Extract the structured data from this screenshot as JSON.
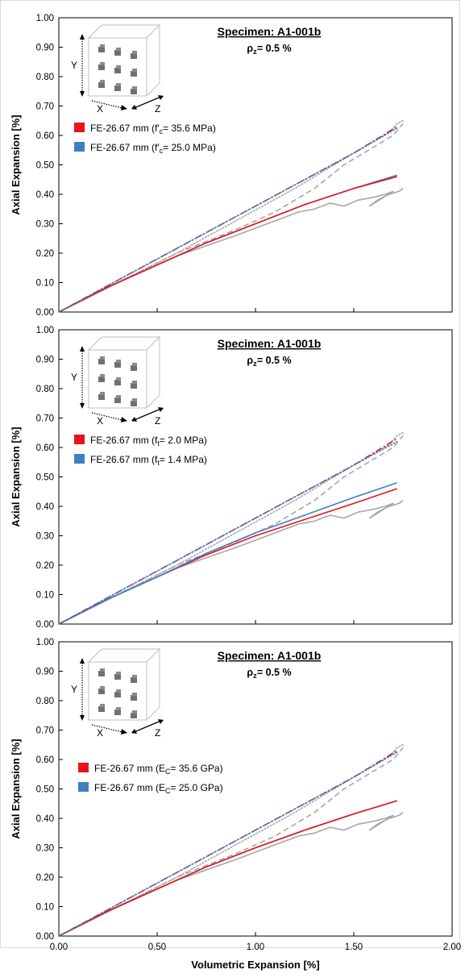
{
  "colors": {
    "red": "#e8131a",
    "blue": "#3d7fc1",
    "gray": "#a6a6a6",
    "axis": "#000000"
  },
  "shared_axes": {
    "xlabel": "Volumetric Expansion [%]",
    "ylabel": "Axial Expansion [%]",
    "x_ticks": [
      "0.00",
      "0.50",
      "1.00",
      "1.50",
      "2.00"
    ],
    "y_ticks": [
      "0.00",
      "0.10",
      "0.20",
      "0.30",
      "0.40",
      "0.50",
      "0.60",
      "0.70",
      "0.80",
      "0.90",
      "1.00"
    ]
  },
  "cube_icon": {
    "y_label": "Y",
    "x_label": "X",
    "z_label": "Z"
  },
  "chart_data": [
    {
      "type": "line",
      "title": "Specimen: A1-001b",
      "subtitle": "ρz= 0.5 %",
      "xlabel": "",
      "ylabel": "Axial Expansion [%]",
      "xlim": [
        0,
        2
      ],
      "ylim": [
        0,
        1
      ],
      "grid": false,
      "legend_position": "top-left",
      "series": [
        {
          "name": "FE-26.67 mm (f′c= 35.6 MPa)",
          "color": "#e8131a",
          "style": "dashdot",
          "x": [
            0,
            0.25,
            0.5,
            0.75,
            1.0,
            1.25,
            1.5,
            1.72
          ],
          "y": [
            0,
            0.09,
            0.18,
            0.27,
            0.36,
            0.45,
            0.54,
            0.63
          ]
        },
        {
          "name": "FE-26.67 mm (f′c= 25.0 MPa)",
          "color": "#3d7fc1",
          "style": "solid",
          "x": [
            0,
            0.25,
            0.5,
            0.75,
            1.0,
            1.25,
            1.5,
            1.72
          ],
          "y": [
            0,
            0.085,
            0.16,
            0.235,
            0.3,
            0.365,
            0.42,
            0.465
          ]
        },
        {
          "name": "",
          "color": "#e8131a",
          "style": "solid",
          "x": [
            0,
            0.25,
            0.5,
            0.75,
            1.0,
            1.25,
            1.5,
            1.72
          ],
          "y": [
            0,
            0.085,
            0.16,
            0.235,
            0.3,
            0.365,
            0.42,
            0.46
          ]
        },
        {
          "name": "",
          "color": "#3d7fc1",
          "style": "dotted",
          "x": [
            0,
            0.25,
            0.5,
            0.75,
            1.0,
            1.25,
            1.5,
            1.72
          ],
          "y": [
            0,
            0.09,
            0.18,
            0.27,
            0.36,
            0.45,
            0.54,
            0.625
          ]
        },
        {
          "name": "",
          "color": "#a6a6a6",
          "style": "dotted",
          "x": [
            0,
            0.3,
            0.6,
            0.9,
            1.2,
            1.45,
            1.6,
            1.68,
            1.72,
            1.75
          ],
          "y": [
            0,
            0.1,
            0.2,
            0.31,
            0.42,
            0.52,
            0.58,
            0.61,
            0.64,
            0.65
          ]
        },
        {
          "name": "",
          "color": "#a6a6a6",
          "style": "dashed",
          "x": [
            0,
            0.3,
            0.6,
            0.9,
            1.1,
            1.3,
            1.45,
            1.6,
            1.7,
            1.75
          ],
          "y": [
            0,
            0.1,
            0.2,
            0.28,
            0.34,
            0.42,
            0.5,
            0.56,
            0.6,
            0.64
          ]
        },
        {
          "name": "",
          "color": "#a6a6a6",
          "style": "solid",
          "x": [
            0,
            0.3,
            0.6,
            0.9,
            1.1,
            1.22,
            1.3,
            1.38,
            1.45,
            1.52,
            1.6,
            1.66,
            1.7,
            1.58,
            1.62,
            1.68,
            1.73,
            1.75
          ],
          "y": [
            0,
            0.1,
            0.19,
            0.26,
            0.31,
            0.34,
            0.35,
            0.37,
            0.36,
            0.38,
            0.39,
            0.4,
            0.41,
            0.36,
            0.38,
            0.4,
            0.41,
            0.42
          ]
        }
      ]
    },
    {
      "type": "line",
      "title": "Specimen: A1-001b",
      "subtitle": "ρz= 0.5 %",
      "xlabel": "",
      "ylabel": "Axial Expansion [%]",
      "xlim": [
        0,
        2
      ],
      "ylim": [
        0,
        1
      ],
      "grid": false,
      "legend_position": "top-left",
      "series": [
        {
          "name": "FE-26.67 mm (ft= 2.0 MPa)",
          "color": "#e8131a",
          "style": "solid",
          "x": [
            0,
            0.25,
            0.5,
            0.75,
            1.0,
            1.25,
            1.5,
            1.72
          ],
          "y": [
            0,
            0.085,
            0.16,
            0.235,
            0.3,
            0.355,
            0.41,
            0.46
          ]
        },
        {
          "name": "FE-26.67 mm (ft= 1.4 MPa)",
          "color": "#3d7fc1",
          "style": "solid",
          "x": [
            0,
            0.25,
            0.5,
            0.75,
            1.0,
            1.25,
            1.5,
            1.72
          ],
          "y": [
            0,
            0.085,
            0.16,
            0.24,
            0.31,
            0.37,
            0.43,
            0.48
          ]
        },
        {
          "name": "",
          "color": "#e8131a",
          "style": "dashdot",
          "x": [
            0,
            0.25,
            0.5,
            0.75,
            1.0,
            1.25,
            1.5,
            1.72
          ],
          "y": [
            0,
            0.09,
            0.18,
            0.27,
            0.36,
            0.45,
            0.54,
            0.63
          ]
        },
        {
          "name": "",
          "color": "#3d7fc1",
          "style": "dotted",
          "x": [
            0,
            0.25,
            0.5,
            0.75,
            1.0,
            1.25,
            1.5,
            1.72
          ],
          "y": [
            0,
            0.09,
            0.18,
            0.27,
            0.36,
            0.45,
            0.54,
            0.62
          ]
        },
        {
          "name": "",
          "color": "#a6a6a6",
          "style": "dotted",
          "x": [
            0,
            0.3,
            0.6,
            0.9,
            1.2,
            1.45,
            1.6,
            1.68,
            1.72,
            1.75
          ],
          "y": [
            0,
            0.1,
            0.2,
            0.31,
            0.42,
            0.52,
            0.58,
            0.61,
            0.64,
            0.65
          ]
        },
        {
          "name": "",
          "color": "#a6a6a6",
          "style": "dashed",
          "x": [
            0,
            0.3,
            0.6,
            0.9,
            1.1,
            1.3,
            1.45,
            1.6,
            1.7,
            1.75
          ],
          "y": [
            0,
            0.1,
            0.2,
            0.28,
            0.34,
            0.42,
            0.5,
            0.56,
            0.6,
            0.64
          ]
        },
        {
          "name": "",
          "color": "#a6a6a6",
          "style": "solid",
          "x": [
            0,
            0.3,
            0.6,
            0.9,
            1.1,
            1.22,
            1.3,
            1.38,
            1.45,
            1.52,
            1.6,
            1.66,
            1.7,
            1.58,
            1.62,
            1.68,
            1.73,
            1.75
          ],
          "y": [
            0,
            0.1,
            0.19,
            0.26,
            0.31,
            0.34,
            0.35,
            0.37,
            0.36,
            0.38,
            0.39,
            0.4,
            0.41,
            0.36,
            0.38,
            0.4,
            0.41,
            0.42
          ]
        }
      ]
    },
    {
      "type": "line",
      "title": "Specimen: A1-001b",
      "subtitle": "ρz= 0.5 %",
      "xlabel": "Volumetric Expansion [%]",
      "ylabel": "Axial Expansion [%]",
      "xlim": [
        0,
        2
      ],
      "ylim": [
        0,
        1
      ],
      "grid": false,
      "legend_position": "left",
      "series": [
        {
          "name": "FE-26.67 mm (EC= 35.6 GPa)",
          "color": "#e8131a",
          "style": "dashdot",
          "x": [
            0,
            0.25,
            0.5,
            0.75,
            1.0,
            1.25,
            1.5,
            1.72
          ],
          "y": [
            0,
            0.09,
            0.18,
            0.27,
            0.36,
            0.45,
            0.54,
            0.63
          ]
        },
        {
          "name": "FE-26.67 mm (EC= 25.0 GPa)",
          "color": "#3d7fc1",
          "style": "solid",
          "x": [
            0,
            0.25,
            0.5,
            0.75,
            1.0,
            1.25,
            1.5,
            1.72
          ],
          "y": [
            0,
            0.085,
            0.16,
            0.235,
            0.3,
            0.36,
            0.415,
            0.46
          ]
        },
        {
          "name": "",
          "color": "#e8131a",
          "style": "solid",
          "x": [
            0,
            0.25,
            0.5,
            0.75,
            1.0,
            1.25,
            1.5,
            1.72
          ],
          "y": [
            0,
            0.085,
            0.16,
            0.235,
            0.3,
            0.36,
            0.415,
            0.46
          ]
        },
        {
          "name": "",
          "color": "#3d7fc1",
          "style": "dotted",
          "x": [
            0,
            0.25,
            0.5,
            0.75,
            1.0,
            1.25,
            1.5,
            1.72
          ],
          "y": [
            0,
            0.09,
            0.18,
            0.27,
            0.36,
            0.45,
            0.54,
            0.625
          ]
        },
        {
          "name": "",
          "color": "#a6a6a6",
          "style": "dotted",
          "x": [
            0,
            0.3,
            0.6,
            0.9,
            1.2,
            1.45,
            1.6,
            1.68,
            1.72,
            1.75
          ],
          "y": [
            0,
            0.1,
            0.2,
            0.31,
            0.42,
            0.52,
            0.58,
            0.61,
            0.64,
            0.65
          ]
        },
        {
          "name": "",
          "color": "#a6a6a6",
          "style": "dashed",
          "x": [
            0,
            0.3,
            0.6,
            0.9,
            1.1,
            1.3,
            1.45,
            1.6,
            1.7,
            1.75
          ],
          "y": [
            0,
            0.1,
            0.2,
            0.28,
            0.34,
            0.42,
            0.5,
            0.56,
            0.6,
            0.64
          ]
        },
        {
          "name": "",
          "color": "#a6a6a6",
          "style": "solid",
          "x": [
            0,
            0.3,
            0.6,
            0.9,
            1.1,
            1.22,
            1.3,
            1.38,
            1.45,
            1.52,
            1.6,
            1.66,
            1.7,
            1.58,
            1.62,
            1.68,
            1.73,
            1.75
          ],
          "y": [
            0,
            0.1,
            0.19,
            0.26,
            0.31,
            0.34,
            0.35,
            0.37,
            0.36,
            0.38,
            0.39,
            0.4,
            0.41,
            0.36,
            0.38,
            0.4,
            0.41,
            0.42
          ]
        }
      ]
    }
  ]
}
